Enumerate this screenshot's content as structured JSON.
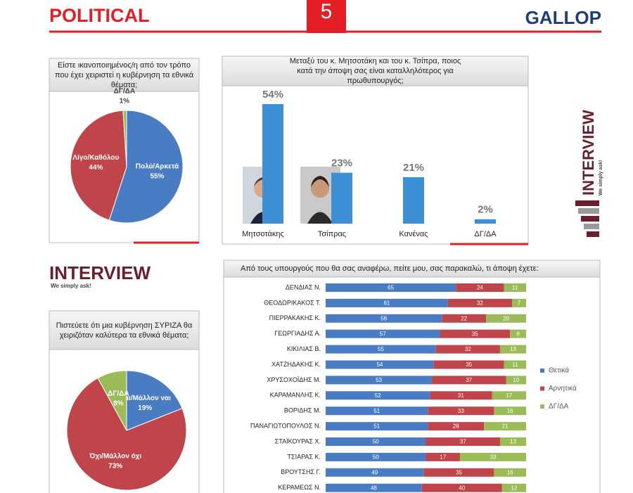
{
  "header": {
    "section": "POLITICAL",
    "page": "5",
    "brand": "GALLOP"
  },
  "logo": {
    "name": "INTERVIEW",
    "slogan": "We simply ask!"
  },
  "chart_data": [
    {
      "type": "pie",
      "title": "Είστε ικανοποιημένος/η από τον τρόπο που έχει χειριστεί η κυβέρνηση τα εθνικά θέματα;",
      "categories": [
        "Πολύ/Αρκετά",
        "Λίγο/Καθόλου",
        "ΔΓ/ΔΑ"
      ],
      "values": [
        55,
        44,
        1
      ],
      "value_labels": [
        "55%",
        "44%",
        "1%"
      ],
      "colors": [
        "#4a7cc4",
        "#c0454a",
        "#9bbb59"
      ]
    },
    {
      "type": "bar",
      "title": "Μεταξύ του κ. Μητσοτάκη και του κ. Τσίπρα, ποιος κατά την άποψη σας είναι καταλληλότερος για πρωθυπουργός;",
      "categories": [
        "Μητσοτάκης",
        "Τσίπρας",
        "Κανένας",
        "ΔΓ/ΔΑ"
      ],
      "values": [
        54,
        23,
        21,
        2
      ],
      "value_labels": [
        "54%",
        "23%",
        "21%",
        "2%"
      ],
      "color": "#3d8fd6"
    },
    {
      "type": "pie",
      "title": "Πιστεύετε ότι μια κυβέρνηση ΣΥΡΙΖΑ θα χειριζόταν καλύτερα τα εθνικά θέματα;",
      "categories": [
        "Ναι/Μάλλον ναι",
        "Όχι/Μάλλον όχι",
        "ΔΓ/ΔΑ"
      ],
      "values": [
        19,
        73,
        8
      ],
      "value_labels": [
        "19%",
        "73%",
        "8%"
      ],
      "colors": [
        "#4a7cc4",
        "#c0454a",
        "#9bbb59"
      ]
    },
    {
      "type": "stacked-bar-horizontal",
      "title": "Από τους υπουργούς που θα σας αναφέρω, πείτε μου, σας παρακαλώ, τι άποψη έχετε:",
      "categories": [
        "ΔΕΝΔΙΑΣ Ν.",
        "ΘΕΟΔΩΡΙΚΑΚΟΣ Τ.",
        "ΠΙΕΡΡΑΚΑΚΗΣ Κ.",
        "ΓΕΩΡΓΙΑΔΗΣ Α.",
        "ΚΙΚΙΛΙΑΣ Β.",
        "ΧΑΤΖΗΔΑΚΗΣ Κ.",
        "ΧΡΥΣΟΧΟΪΔΗΣ Μ.",
        "ΚΑΡΑΜΑΝΛΗΣ Κ.",
        "ΒΟΡΙΔΗΣ Μ.",
        "ΠΑΝΑΓΙΩΤΟΠΟΥΛΟΣ Ν.",
        "ΣΤΑΪΚΟΥΡΑΣ Χ.",
        "ΤΣΙΑΡΑΣ Κ.",
        "ΒΡΟΥΤΣΗΣ Γ.",
        "ΚΕΡΑΜΕΩΣ Ν."
      ],
      "series": [
        {
          "name": "Θετικά",
          "color": "#4a7cc4",
          "values": [
            65,
            61,
            58,
            57,
            55,
            54,
            53,
            52,
            51,
            51,
            50,
            50,
            49,
            48
          ]
        },
        {
          "name": "Αρνητικά",
          "color": "#c0454a",
          "values": [
            24,
            32,
            22,
            35,
            32,
            35,
            37,
            31,
            33,
            28,
            37,
            17,
            35,
            40
          ]
        },
        {
          "name": "ΔΓ/ΔΑ",
          "color": "#9bbb59",
          "values": [
            11,
            7,
            20,
            8,
            13,
            11,
            10,
            17,
            16,
            21,
            13,
            33,
            16,
            12
          ]
        }
      ],
      "legend": "right"
    }
  ]
}
